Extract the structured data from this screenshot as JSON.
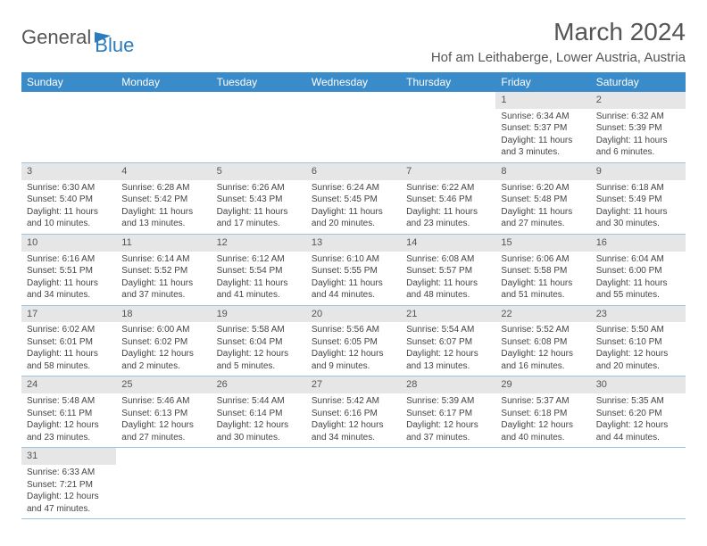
{
  "logo": {
    "text1": "General",
    "text2": "Blue"
  },
  "title": "March 2024",
  "location": "Hof am Leithaberge, Lower Austria, Austria",
  "colors": {
    "header_bg": "#3a8bc9",
    "header_fg": "#ffffff",
    "divider": "#9cc3e0",
    "daynum_bg": "#e6e6e6"
  },
  "weekdays": [
    "Sunday",
    "Monday",
    "Tuesday",
    "Wednesday",
    "Thursday",
    "Friday",
    "Saturday"
  ],
  "weeks": [
    [
      null,
      null,
      null,
      null,
      null,
      {
        "n": "1",
        "sr": "6:34 AM",
        "ss": "5:37 PM",
        "dl": "11 hours and 3 minutes."
      },
      {
        "n": "2",
        "sr": "6:32 AM",
        "ss": "5:39 PM",
        "dl": "11 hours and 6 minutes."
      }
    ],
    [
      {
        "n": "3",
        "sr": "6:30 AM",
        "ss": "5:40 PM",
        "dl": "11 hours and 10 minutes."
      },
      {
        "n": "4",
        "sr": "6:28 AM",
        "ss": "5:42 PM",
        "dl": "11 hours and 13 minutes."
      },
      {
        "n": "5",
        "sr": "6:26 AM",
        "ss": "5:43 PM",
        "dl": "11 hours and 17 minutes."
      },
      {
        "n": "6",
        "sr": "6:24 AM",
        "ss": "5:45 PM",
        "dl": "11 hours and 20 minutes."
      },
      {
        "n": "7",
        "sr": "6:22 AM",
        "ss": "5:46 PM",
        "dl": "11 hours and 23 minutes."
      },
      {
        "n": "8",
        "sr": "6:20 AM",
        "ss": "5:48 PM",
        "dl": "11 hours and 27 minutes."
      },
      {
        "n": "9",
        "sr": "6:18 AM",
        "ss": "5:49 PM",
        "dl": "11 hours and 30 minutes."
      }
    ],
    [
      {
        "n": "10",
        "sr": "6:16 AM",
        "ss": "5:51 PM",
        "dl": "11 hours and 34 minutes."
      },
      {
        "n": "11",
        "sr": "6:14 AM",
        "ss": "5:52 PM",
        "dl": "11 hours and 37 minutes."
      },
      {
        "n": "12",
        "sr": "6:12 AM",
        "ss": "5:54 PM",
        "dl": "11 hours and 41 minutes."
      },
      {
        "n": "13",
        "sr": "6:10 AM",
        "ss": "5:55 PM",
        "dl": "11 hours and 44 minutes."
      },
      {
        "n": "14",
        "sr": "6:08 AM",
        "ss": "5:57 PM",
        "dl": "11 hours and 48 minutes."
      },
      {
        "n": "15",
        "sr": "6:06 AM",
        "ss": "5:58 PM",
        "dl": "11 hours and 51 minutes."
      },
      {
        "n": "16",
        "sr": "6:04 AM",
        "ss": "6:00 PM",
        "dl": "11 hours and 55 minutes."
      }
    ],
    [
      {
        "n": "17",
        "sr": "6:02 AM",
        "ss": "6:01 PM",
        "dl": "11 hours and 58 minutes."
      },
      {
        "n": "18",
        "sr": "6:00 AM",
        "ss": "6:02 PM",
        "dl": "12 hours and 2 minutes."
      },
      {
        "n": "19",
        "sr": "5:58 AM",
        "ss": "6:04 PM",
        "dl": "12 hours and 5 minutes."
      },
      {
        "n": "20",
        "sr": "5:56 AM",
        "ss": "6:05 PM",
        "dl": "12 hours and 9 minutes."
      },
      {
        "n": "21",
        "sr": "5:54 AM",
        "ss": "6:07 PM",
        "dl": "12 hours and 13 minutes."
      },
      {
        "n": "22",
        "sr": "5:52 AM",
        "ss": "6:08 PM",
        "dl": "12 hours and 16 minutes."
      },
      {
        "n": "23",
        "sr": "5:50 AM",
        "ss": "6:10 PM",
        "dl": "12 hours and 20 minutes."
      }
    ],
    [
      {
        "n": "24",
        "sr": "5:48 AM",
        "ss": "6:11 PM",
        "dl": "12 hours and 23 minutes."
      },
      {
        "n": "25",
        "sr": "5:46 AM",
        "ss": "6:13 PM",
        "dl": "12 hours and 27 minutes."
      },
      {
        "n": "26",
        "sr": "5:44 AM",
        "ss": "6:14 PM",
        "dl": "12 hours and 30 minutes."
      },
      {
        "n": "27",
        "sr": "5:42 AM",
        "ss": "6:16 PM",
        "dl": "12 hours and 34 minutes."
      },
      {
        "n": "28",
        "sr": "5:39 AM",
        "ss": "6:17 PM",
        "dl": "12 hours and 37 minutes."
      },
      {
        "n": "29",
        "sr": "5:37 AM",
        "ss": "6:18 PM",
        "dl": "12 hours and 40 minutes."
      },
      {
        "n": "30",
        "sr": "5:35 AM",
        "ss": "6:20 PM",
        "dl": "12 hours and 44 minutes."
      }
    ],
    [
      {
        "n": "31",
        "sr": "6:33 AM",
        "ss": "7:21 PM",
        "dl": "12 hours and 47 minutes."
      },
      null,
      null,
      null,
      null,
      null,
      null
    ]
  ],
  "labels": {
    "sunrise": "Sunrise: ",
    "sunset": "Sunset: ",
    "daylight": "Daylight: "
  }
}
